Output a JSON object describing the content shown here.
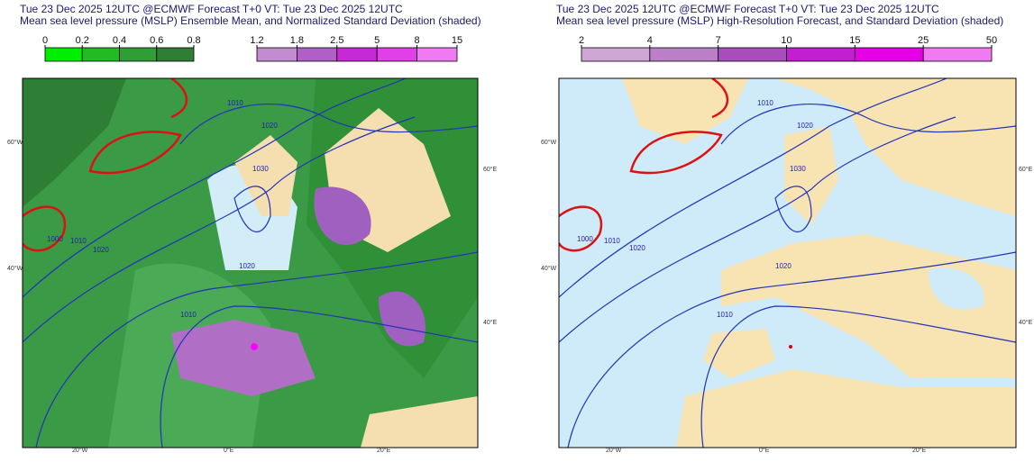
{
  "panels": [
    {
      "title_lines": [
        "Tue 23 Dec 2025 12UTC @ECMWF Forecast T+0 VT: Tue 23 Dec 2025 12UTC",
        "Mean sea level pressure (MSLP) Ensemble Mean, and Normalized Standard Deviation (shaded)"
      ],
      "colorbars": [
        {
          "ticks": [
            0,
            0.2,
            0.4,
            0.6,
            0.8
          ],
          "colors": [
            "#00ee00",
            "#22bb22",
            "#2f9e35",
            "#2e7f35"
          ]
        },
        {
          "ticks": [
            1.2,
            1.8,
            2.5,
            5,
            8,
            15
          ],
          "colors": [
            "#c38cd0",
            "#b05fc6",
            "#c62ad6",
            "#e040e6",
            "#f07af2"
          ]
        }
      ],
      "map_labels": [
        "60°W",
        "40°W",
        "20°W",
        "0°E",
        "20°E",
        "60°E",
        "40°E",
        "1000",
        "1010",
        "1020",
        "1010",
        "1020",
        "1030",
        "1020",
        "1010"
      ]
    },
    {
      "title_lines": [
        "Tue 23 Dec 2025 12UTC @ECMWF Forecast T+0 VT: Tue 23 Dec 2025 12UTC",
        "Mean sea level pressure (MSLP) High-Resolution Forecast, and Standard Deviation (shaded)"
      ],
      "colorbars": [
        {
          "ticks": [
            2,
            4,
            7,
            10,
            15,
            25,
            50
          ],
          "colors": [
            "#cfa6d6",
            "#bb7fc8",
            "#a84dbb",
            "#c21fd0",
            "#e600e6",
            "#f07af2"
          ]
        }
      ],
      "map_labels": [
        "60°W",
        "40°W",
        "20°W",
        "0°E",
        "20°E",
        "60°E",
        "40°E",
        "1000",
        "1010",
        "1020",
        "1010",
        "1020",
        "1030",
        "1020",
        "1010"
      ]
    }
  ]
}
